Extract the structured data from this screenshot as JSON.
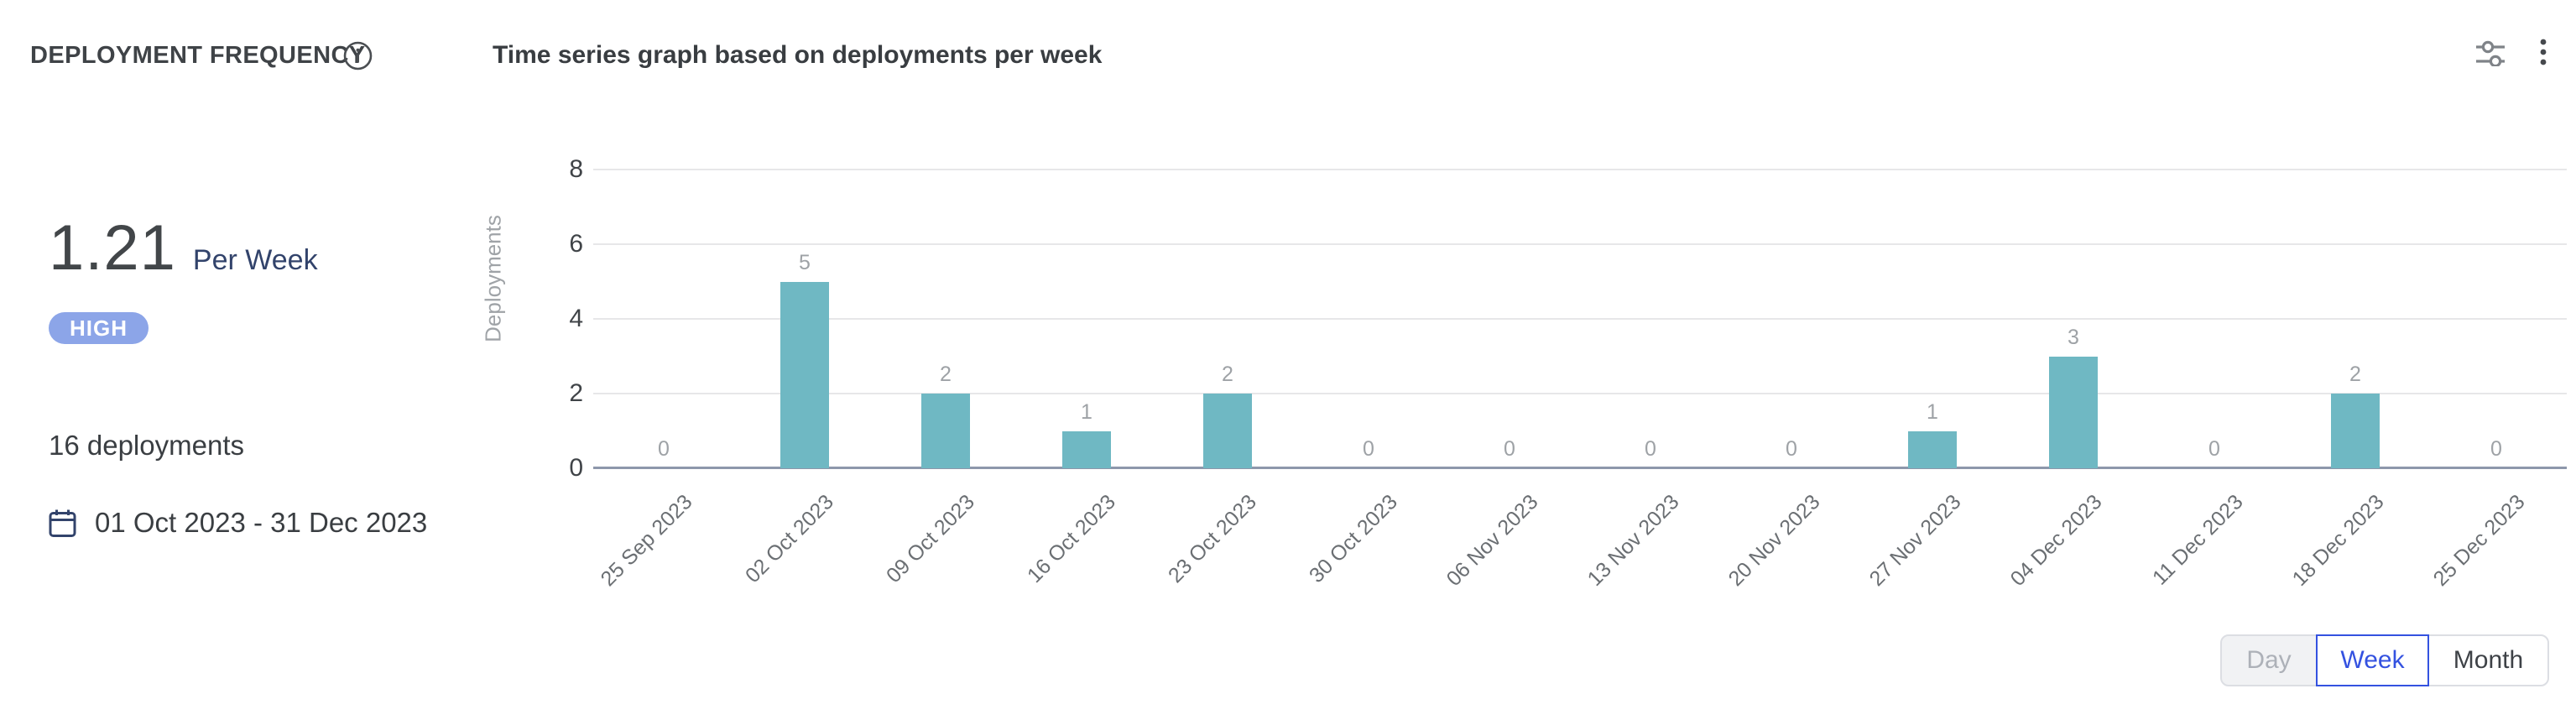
{
  "header": {
    "title": "DEPLOYMENT FREQUENCY",
    "subtitle": "Time series graph based on deployments per week",
    "icons": [
      "info-icon",
      "filter-sliders-icon",
      "kebab-menu-icon"
    ]
  },
  "summary": {
    "rate_value": "1.21",
    "rate_unit": "Per Week",
    "level_badge": "HIGH",
    "badge_color": "#8ca5e8",
    "total_deployments": "16 deployments",
    "date_range": "01 Oct 2023 - 31 Dec 2023"
  },
  "chart_data": {
    "type": "bar",
    "title": "Time series graph based on deployments per week",
    "categories": [
      "25 Sep 2023",
      "02 Oct 2023",
      "09 Oct 2023",
      "16 Oct 2023",
      "23 Oct 2023",
      "30 Oct 2023",
      "06 Nov 2023",
      "13 Nov 2023",
      "20 Nov 2023",
      "27 Nov 2023",
      "04 Dec 2023",
      "11 Dec 2023",
      "18 Dec 2023",
      "25 Dec 2023"
    ],
    "values": [
      0,
      5,
      2,
      1,
      2,
      0,
      0,
      0,
      0,
      1,
      3,
      0,
      2,
      0
    ],
    "xlabel": "",
    "ylabel": "Deployments",
    "ylim": [
      0,
      8
    ],
    "yticks": [
      0,
      2,
      4,
      6,
      8
    ],
    "grid": true,
    "value_labels": true,
    "bar_color": "#6fb8c3",
    "gridline_color": "#e7e7e9",
    "axis_line_color": "#8d97ab"
  },
  "toggle": {
    "accent_color": "#3452e0",
    "options": [
      {
        "label": "Day",
        "state": "disabled"
      },
      {
        "label": "Week",
        "state": "selected"
      },
      {
        "label": "Month",
        "state": "default"
      }
    ]
  }
}
